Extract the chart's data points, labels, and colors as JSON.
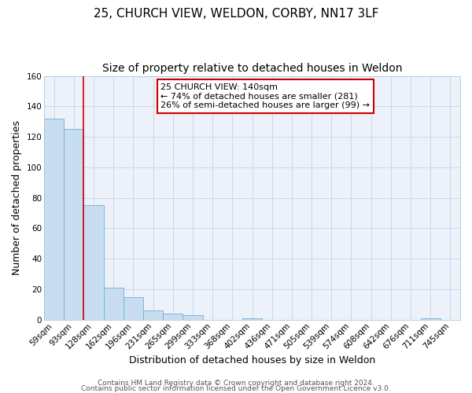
{
  "title_line1": "25, CHURCH VIEW, WELDON, CORBY, NN17 3LF",
  "title_line2": "Size of property relative to detached houses in Weldon",
  "xlabel": "Distribution of detached houses by size in Weldon",
  "ylabel": "Number of detached properties",
  "bar_labels": [
    "59sqm",
    "93sqm",
    "128sqm",
    "162sqm",
    "196sqm",
    "231sqm",
    "265sqm",
    "299sqm",
    "333sqm",
    "368sqm",
    "402sqm",
    "436sqm",
    "471sqm",
    "505sqm",
    "539sqm",
    "574sqm",
    "608sqm",
    "642sqm",
    "676sqm",
    "711sqm",
    "745sqm"
  ],
  "bar_values": [
    132,
    125,
    75,
    21,
    15,
    6,
    4,
    3,
    0,
    0,
    1,
    0,
    0,
    0,
    0,
    0,
    0,
    0,
    0,
    1,
    0
  ],
  "bar_color": "#c9ddf0",
  "bar_edge_color": "#6baed6",
  "red_line_index": 2,
  "ylim": [
    0,
    160
  ],
  "yticks": [
    0,
    20,
    40,
    60,
    80,
    100,
    120,
    140,
    160
  ],
  "annotation_title": "25 CHURCH VIEW: 140sqm",
  "annotation_line1": "← 74% of detached houses are smaller (281)",
  "annotation_line2": "26% of semi-detached houses are larger (99) →",
  "annotation_box_color": "#ffffff",
  "annotation_box_edge": "#cc0000",
  "footer_line1": "Contains HM Land Registry data © Crown copyright and database right 2024.",
  "footer_line2": "Contains public sector information licensed under the Open Government Licence v3.0.",
  "background_color": "#ffffff",
  "plot_bg_color": "#edf2fa",
  "grid_color": "#c8d8ea",
  "title_fontsize": 11,
  "subtitle_fontsize": 10,
  "axis_label_fontsize": 9,
  "tick_fontsize": 7.5,
  "annotation_fontsize": 8,
  "footer_fontsize": 6.5
}
